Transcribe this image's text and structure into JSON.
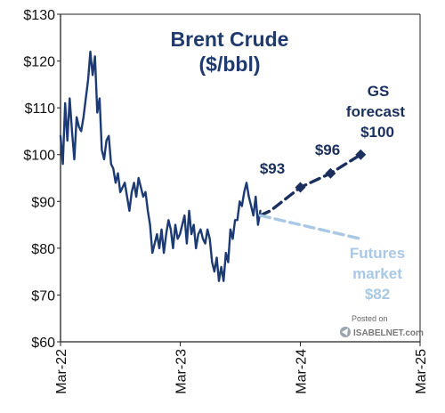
{
  "chart_data": {
    "type": "line",
    "title": "Brent  Crude",
    "subtitle": "($/bbl)",
    "ylim": [
      60,
      130
    ],
    "xlim": [
      "2022-03",
      "2025-03"
    ],
    "y_ticks": [
      "$60",
      "$70",
      "$80",
      "$90",
      "$100",
      "$110",
      "$120",
      "$130"
    ],
    "x_ticks": [
      "Mar-22",
      "Mar-23",
      "Mar-24",
      "Mar-25"
    ],
    "grid": false,
    "series": [
      {
        "name": "",
        "color": "#1c3a73",
        "style": "solid",
        "x": [
          "2022-03-01",
          "2022-03-08",
          "2022-03-15",
          "2022-03-22",
          "2022-03-29",
          "2022-04-05",
          "2022-04-12",
          "2022-04-19",
          "2022-04-26",
          "2022-05-03",
          "2022-05-10",
          "2022-05-17",
          "2022-05-24",
          "2022-05-31",
          "2022-06-07",
          "2022-06-14",
          "2022-06-21",
          "2022-06-28",
          "2022-07-05",
          "2022-07-12",
          "2022-07-19",
          "2022-07-26",
          "2022-08-02",
          "2022-08-09",
          "2022-08-16",
          "2022-08-23",
          "2022-08-30",
          "2022-09-06",
          "2022-09-13",
          "2022-09-20",
          "2022-09-27",
          "2022-10-04",
          "2022-10-11",
          "2022-10-18",
          "2022-10-25",
          "2022-11-01",
          "2022-11-08",
          "2022-11-15",
          "2022-11-22",
          "2022-11-29",
          "2022-12-06",
          "2022-12-13",
          "2022-12-20",
          "2022-12-27",
          "2023-01-03",
          "2023-01-10",
          "2023-01-17",
          "2023-01-24",
          "2023-01-31",
          "2023-02-07",
          "2023-02-14",
          "2023-02-21",
          "2023-02-28",
          "2023-03-07",
          "2023-03-14",
          "2023-03-21",
          "2023-03-28",
          "2023-04-04",
          "2023-04-11",
          "2023-04-18",
          "2023-04-25",
          "2023-05-02",
          "2023-05-09",
          "2023-05-16",
          "2023-05-23",
          "2023-05-30",
          "2023-06-06",
          "2023-06-13",
          "2023-06-20",
          "2023-06-27",
          "2023-07-04",
          "2023-07-11",
          "2023-07-18",
          "2023-07-25",
          "2023-08-01",
          "2023-08-08",
          "2023-08-15",
          "2023-08-22",
          "2023-08-29",
          "2023-09-05",
          "2023-09-12",
          "2023-09-19",
          "2023-09-26",
          "2023-10-03",
          "2023-10-10",
          "2023-10-17",
          "2023-10-24",
          "2023-10-31"
        ],
        "values": [
          104,
          98,
          111,
          103,
          112,
          105,
          99,
          108,
          106,
          105,
          108,
          112,
          116,
          122,
          117,
          121,
          109,
          112,
          101,
          99,
          103,
          104,
          98,
          97,
          94,
          96,
          92,
          93,
          94,
          91,
          88,
          92,
          94,
          91,
          95,
          93,
          91,
          92,
          88,
          85,
          79,
          81,
          83,
          80,
          84,
          79,
          83,
          86,
          84,
          80,
          85,
          82,
          83,
          85,
          87,
          81,
          88,
          83,
          85,
          80,
          83,
          84,
          82,
          81,
          84,
          82,
          77,
          75,
          78,
          73,
          76,
          73,
          79,
          77,
          84,
          82,
          86,
          86,
          90,
          89,
          92,
          94,
          91,
          89,
          87,
          91,
          85,
          88
        ]
      },
      {
        "name": "GS forecast",
        "color": "#1a2f5e",
        "style": "dashed",
        "markers": "diamond",
        "x": [
          "2023-10-31",
          "2023-12-01",
          "2024-03-01",
          "2024-06-01",
          "2024-09-01"
        ],
        "values": [
          87,
          88,
          93,
          96,
          100
        ]
      },
      {
        "name": "Futures market",
        "color": "#a8c8e6",
        "style": "dashed",
        "x": [
          "2023-10-31",
          "2024-09-01"
        ],
        "values": [
          87,
          82
        ]
      }
    ],
    "annotations": {
      "gs_93": "$93",
      "gs_96": "$96",
      "gs_label_1": "GS",
      "gs_label_2": "forecast",
      "gs_100": "$100",
      "fut_label_1": "Futures",
      "fut_label_2": "market",
      "fut_82": "$82"
    }
  },
  "watermark": {
    "line1": "Posted on",
    "line2": "ISABELNET.com"
  }
}
